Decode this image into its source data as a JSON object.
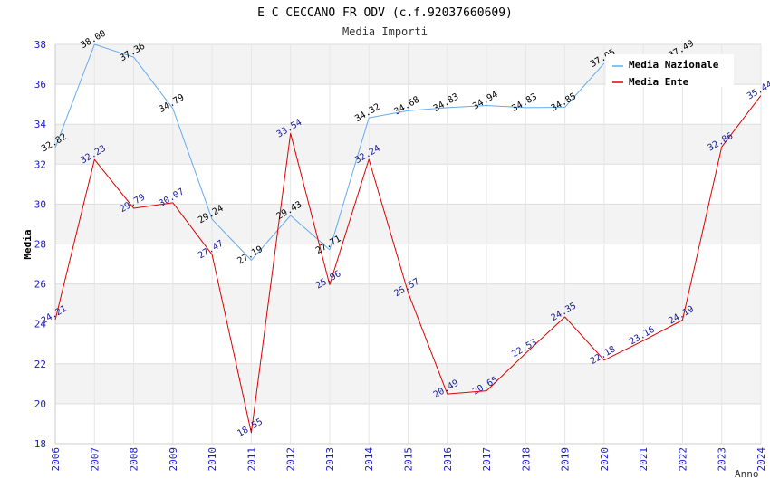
{
  "chart_data": {
    "type": "line",
    "title": "E C CECCANO FR ODV (c.f.92037660609)",
    "subtitle": "Media Importi",
    "xlabel": "Anno",
    "ylabel": "Media",
    "ylim": [
      18,
      38
    ],
    "yticks": [
      18,
      20,
      22,
      24,
      26,
      28,
      30,
      32,
      34,
      36,
      38
    ],
    "x": [
      "2006",
      "2007",
      "2008",
      "2009",
      "2010",
      "2011",
      "2012",
      "2013",
      "2014",
      "2015",
      "2016",
      "2017",
      "2018",
      "2019",
      "2020",
      "2021",
      "2022",
      "2023",
      "2024"
    ],
    "legend_position": "top-right",
    "series": [
      {
        "name": "Media Nazionale",
        "color": "#66aaee",
        "label_color": "#000000",
        "values": [
          32.82,
          38.0,
          37.36,
          34.79,
          29.24,
          27.19,
          29.43,
          27.71,
          34.32,
          34.68,
          34.83,
          34.94,
          34.83,
          34.85,
          37.05,
          null,
          37.49,
          null,
          null
        ],
        "labels": [
          "32.82",
          "38.00",
          "37.36",
          "34.79",
          "29.24",
          "27.19",
          "29.43",
          "27.71",
          "34.32",
          "34.68",
          "34.83",
          "34.94",
          "34.83",
          "34.85",
          "37.05",
          null,
          "37.49",
          null,
          null
        ]
      },
      {
        "name": "Media Ente",
        "color": "#dd0000",
        "label_color": "#1a1a99",
        "values": [
          24.21,
          32.23,
          29.79,
          30.07,
          27.47,
          18.55,
          33.54,
          25.96,
          32.24,
          25.57,
          20.49,
          20.65,
          22.53,
          24.35,
          22.18,
          23.16,
          24.19,
          32.86,
          35.44
        ],
        "labels": [
          "24.21",
          "32.23",
          "29.79",
          "30.07",
          "27.47",
          "18.55",
          "33.54",
          "25.96",
          "32.24",
          "25.57",
          "20.49",
          "20.65",
          "22.53",
          "24.35",
          "22.18",
          "23.16",
          "24.19",
          "32.86",
          "35.44"
        ]
      }
    ]
  }
}
